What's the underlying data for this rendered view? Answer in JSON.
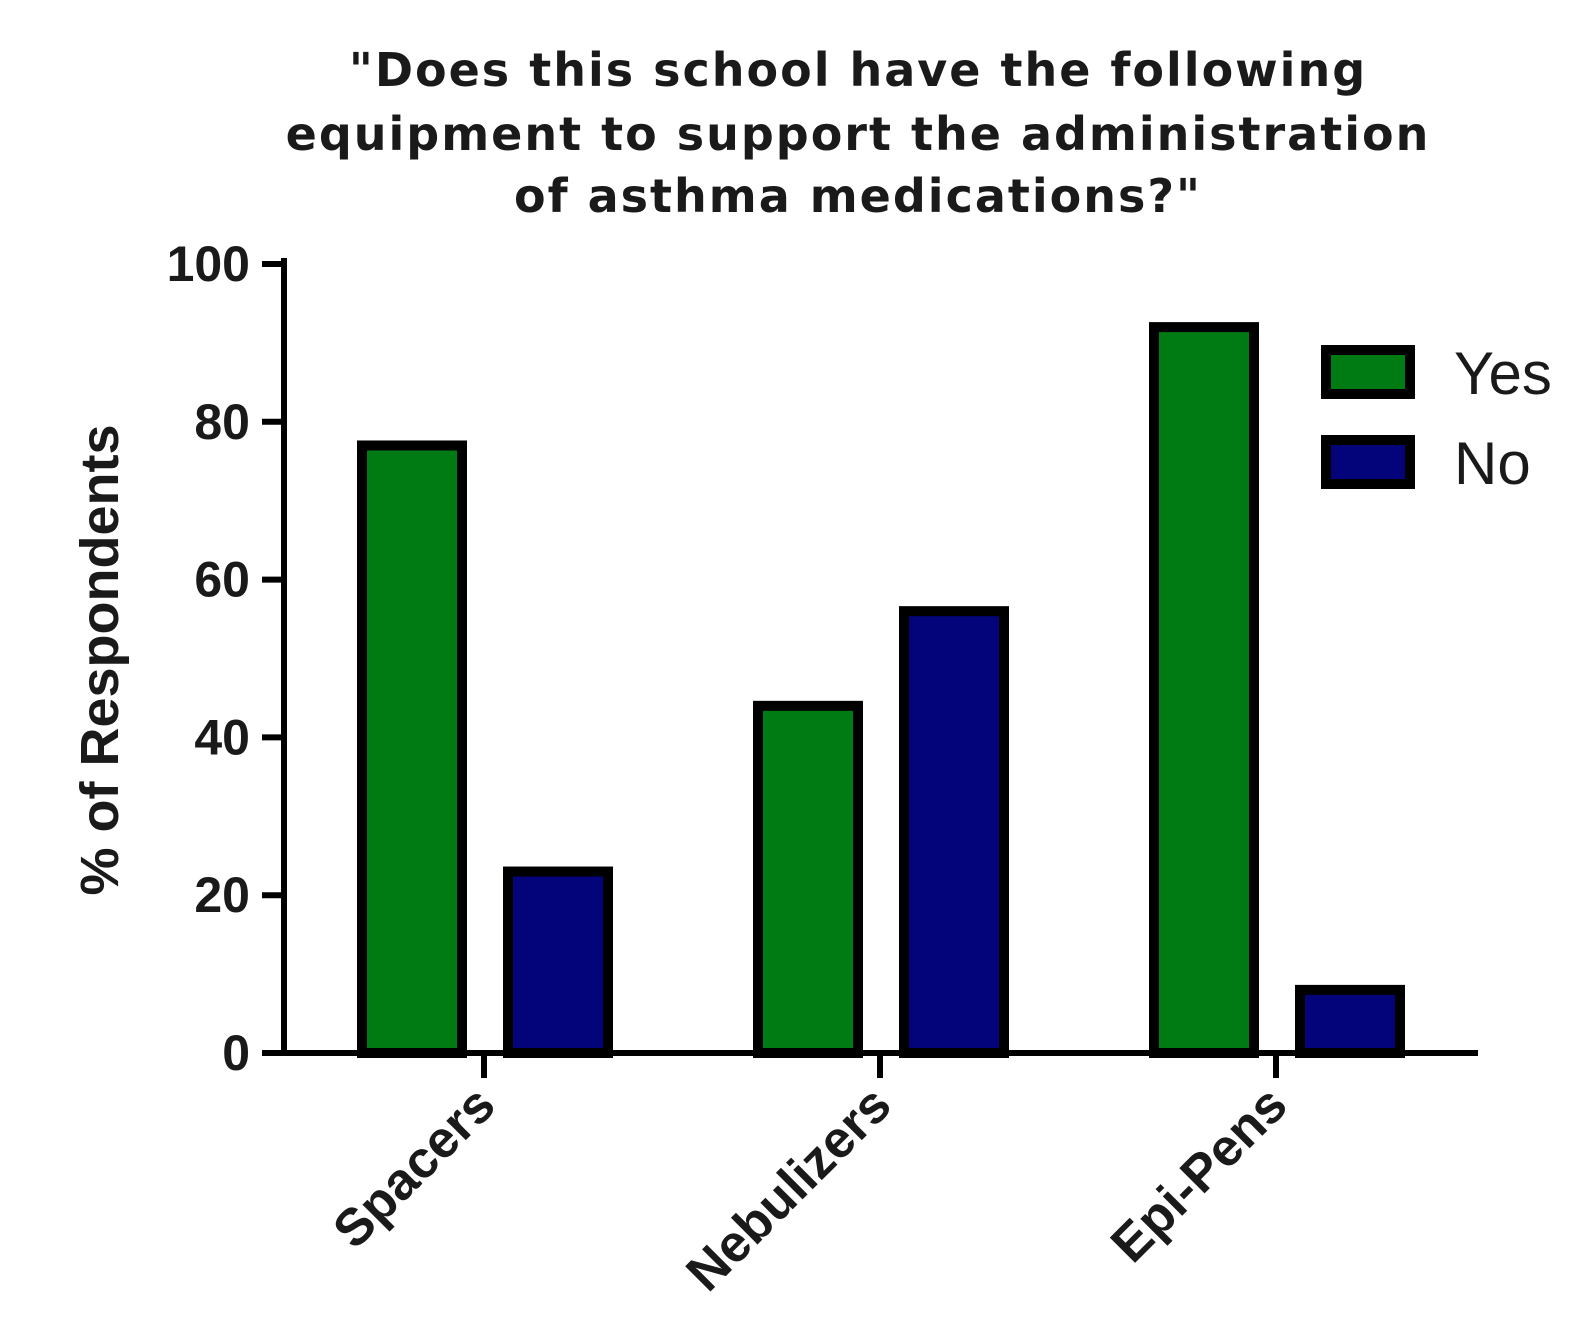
{
  "chart_data": {
    "type": "bar",
    "title_lines": [
      "\"Does this school have the following",
      "equipment to support the administration",
      "of asthma medications?\""
    ],
    "ylabel": "% of Respondents",
    "xlabel": "",
    "categories": [
      "Spacers",
      "Nebulizers",
      "Epi-Pens"
    ],
    "series": [
      {
        "name": "Yes",
        "color": "#007a12",
        "values": [
          77,
          44,
          92
        ]
      },
      {
        "name": "No",
        "color": "#03037a",
        "values": [
          23,
          56,
          8
        ]
      }
    ],
    "ylim": [
      0,
      100
    ],
    "yticks": [
      0,
      20,
      40,
      60,
      80,
      100
    ],
    "grid": false,
    "legend_position": "top-right"
  }
}
